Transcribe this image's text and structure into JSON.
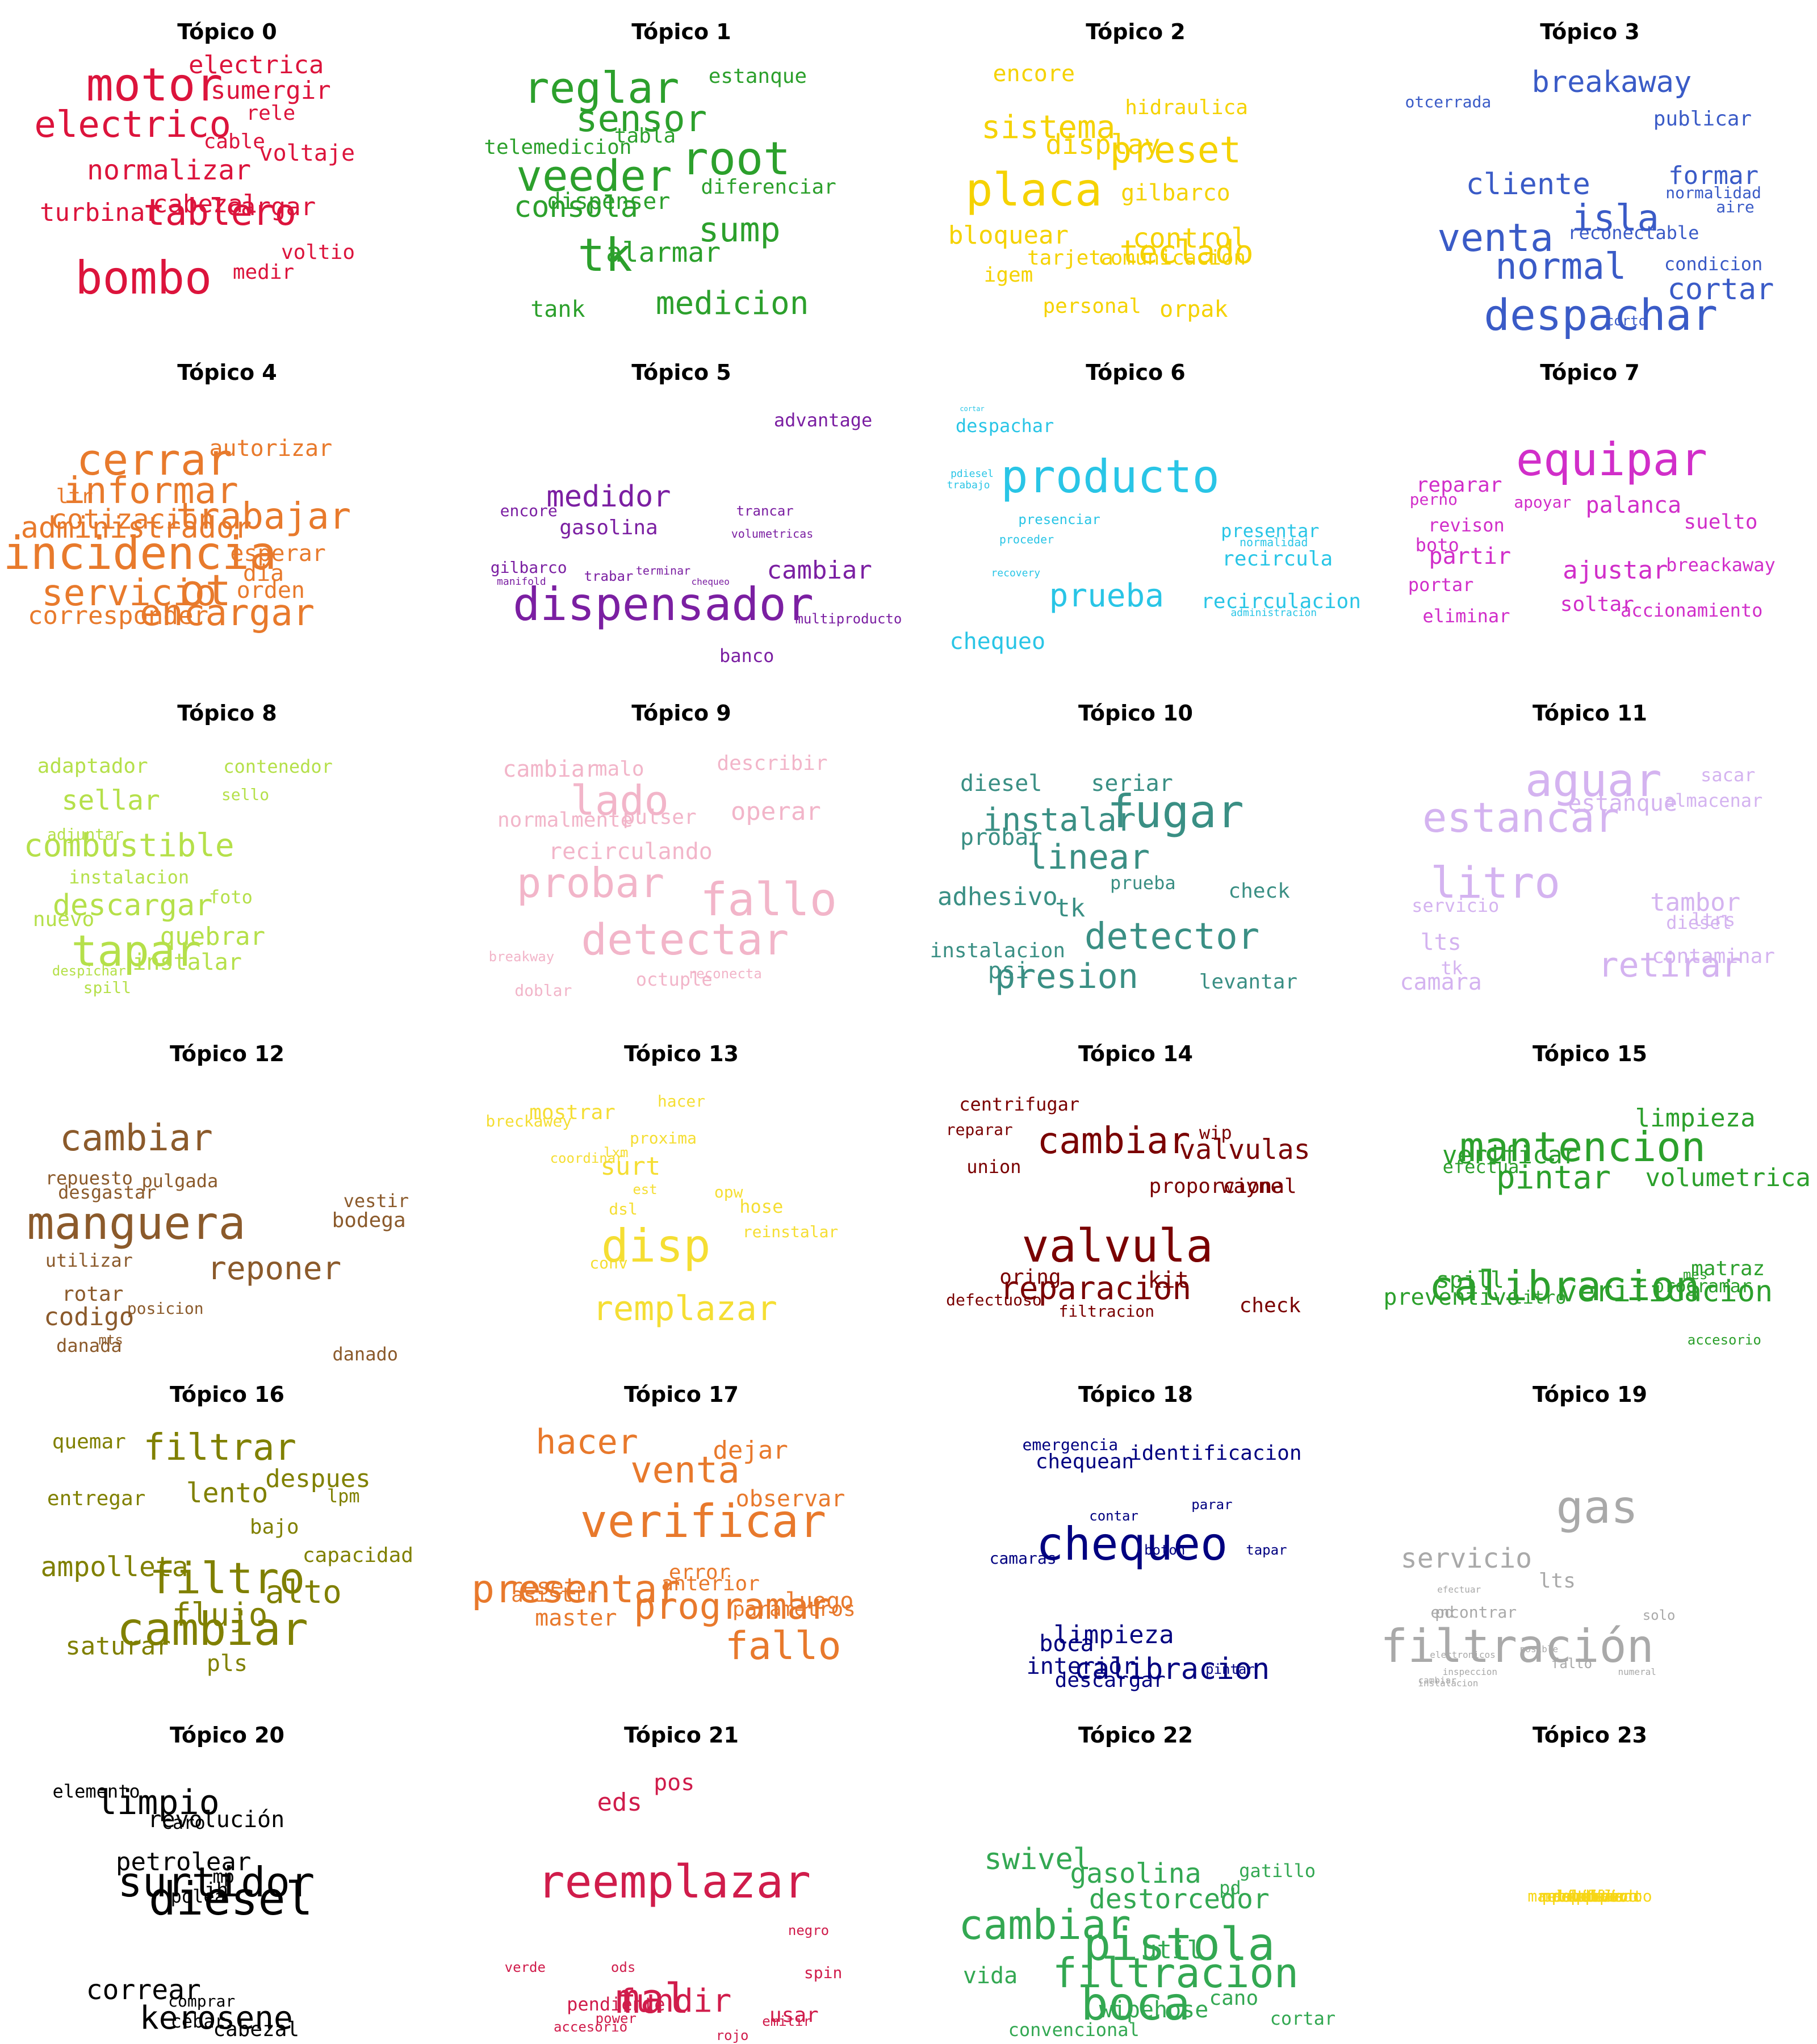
{
  "topics": [
    {
      "title": "Tópico 0",
      "color": "#dc143c",
      "words": [
        "motor",
        "electrico",
        "bombo",
        "tablero",
        "electrica",
        "sumergir",
        "rele",
        "cable",
        "voltaje",
        "normalizar",
        "turbinar",
        "cabezal",
        "cargar",
        "medir",
        "voltio"
      ]
    },
    {
      "title": "Tópico 1",
      "color": "#2ca02c",
      "words": [
        "reglar",
        "sensor",
        "veeder",
        "root",
        "tk",
        "consola",
        "sump",
        "medicion",
        "alarmar",
        "estanque",
        "telemedicion",
        "tabla",
        "dispenser",
        "diferenciar",
        "tank"
      ]
    },
    {
      "title": "Tópico 2",
      "color": "#f5d200",
      "words": [
        "placa",
        "sistema",
        "preset",
        "display",
        "teclado",
        "bloquear",
        "control",
        "gilbarco",
        "encore",
        "hidraulica",
        "tarjeta",
        "comunicacion",
        "igem",
        "personal",
        "orpak"
      ]
    },
    {
      "title": "Tópico 3",
      "color": "#3a5bc7",
      "words": [
        "despachar",
        "normal",
        "venta",
        "isla",
        "cliente",
        "breakaway",
        "cortar",
        "formar",
        "publicar",
        "otcerrada",
        "reconectable",
        "aire",
        "condicion",
        "normalidad",
        "corto"
      ]
    },
    {
      "title": "Tópico 4",
      "color": "#e87a2c",
      "words": [
        "incidencia",
        "cerrar",
        "informar",
        "trabajar",
        "servicio",
        "ot",
        "encargar",
        "administrador",
        "cotizacion",
        "corresponder",
        "autorizar",
        "ltr",
        "esperar",
        "dia",
        "orden"
      ]
    },
    {
      "title": "Tópico 5",
      "color": "#7b1fa2",
      "words": [
        "dispensador",
        "medidor",
        "cambiar",
        "gasolina",
        "advantage",
        "encore",
        "trancar",
        "volumetricas",
        "terminar",
        "gilbarco",
        "trabar",
        "manifold",
        "chequeo",
        "banco",
        "multiproducto"
      ]
    },
    {
      "title": "Tópico 6",
      "color": "#29c5e6",
      "words": [
        "producto",
        "prueba",
        "despachar",
        "recircula",
        "recirculacion",
        "chequeo",
        "presentar",
        "presenciar",
        "proceder",
        "normalidad",
        "pdiesel",
        "trabajo",
        "recovery",
        "administracion",
        "cortar"
      ]
    },
    {
      "title": "Tópico 7",
      "color": "#d12ec9",
      "words": [
        "equipar",
        "reparar",
        "palanca",
        "ajustar",
        "partir",
        "soltar",
        "perno",
        "apoyar",
        "revison",
        "suelto",
        "boto",
        "portar",
        "breackaway",
        "eliminar",
        "accionamiento"
      ]
    },
    {
      "title": "Tópico 8",
      "color": "#b5e04a",
      "words": [
        "tapar",
        "combustible",
        "descargar",
        "sellar",
        "quebrar",
        "instalar",
        "adaptador",
        "contenedor",
        "sello",
        "adjuntar",
        "instalacion",
        "foto",
        "nuevo",
        "despichar",
        "spill"
      ]
    },
    {
      "title": "Tópico 9",
      "color": "#f2b5c9",
      "words": [
        "fallo",
        "probar",
        "detectar",
        "lado",
        "operar",
        "recirculando",
        "cambiar",
        "malo",
        "describir",
        "pulser",
        "normalmente",
        "breakway",
        "doblar",
        "octuple",
        "reconecta"
      ]
    },
    {
      "title": "Tópico 10",
      "color": "#3a8f84",
      "words": [
        "fugar",
        "detector",
        "linear",
        "presion",
        "instalar",
        "adhesivo",
        "probar",
        "diesel",
        "seriar",
        "prueba",
        "tk",
        "check",
        "instalacion",
        "psi",
        "levantar"
      ]
    },
    {
      "title": "Tópico 11",
      "color": "#d4b3f0",
      "words": [
        "aguar",
        "litro",
        "estancar",
        "retirar",
        "tambor",
        "estanque",
        "almacenar",
        "sacar",
        "servicio",
        "diesel",
        "ltrs",
        "lts",
        "tk",
        "contaminar",
        "camara"
      ]
    },
    {
      "title": "Tópico 12",
      "color": "#8b5a2b",
      "words": [
        "cambiar",
        "manguera",
        "reponer",
        "repuesto",
        "desgastar",
        "pulgada",
        "vestir",
        "bodega",
        "utilizar",
        "rotar",
        "codigo",
        "posicion",
        "danada",
        "mts",
        "danado"
      ]
    },
    {
      "title": "Tópico 13",
      "color": "#f5de33",
      "words": [
        "disp",
        "remplazar",
        "surt",
        "mostrar",
        "breckawey",
        "hacer",
        "coordinar",
        "lxm",
        "proxima",
        "est",
        "dsl",
        "hose",
        "opw",
        "reinstalar",
        "conv"
      ]
    },
    {
      "title": "Tópico 14",
      "color": "#7a0000",
      "words": [
        "valvula",
        "cambiar",
        "reparacion",
        "proporcional",
        "valvulas",
        "oring",
        "kit",
        "check",
        "centrifugar",
        "wip",
        "wayne",
        "reparar",
        "union",
        "defectuoso",
        "filtracion"
      ]
    },
    {
      "title": "Tópico 15",
      "color": "#2ca02c",
      "words": [
        "mantencion",
        "calibracion",
        "preventivo",
        "limpieza",
        "verificacion",
        "volumetrica",
        "spill",
        "verificar",
        "matraz",
        "efectua",
        "mes",
        "accesorio",
        "pintar",
        "litro",
        "programar"
      ]
    },
    {
      "title": "Tópico 16",
      "color": "#808000",
      "words": [
        "cambiar",
        "filtro",
        "filtrar",
        "flujo",
        "alto",
        "ampolleta",
        "lento",
        "quemar",
        "entregar",
        "despues",
        "saturar",
        "capacidad",
        "bajo",
        "lpm",
        "pls"
      ]
    },
    {
      "title": "Tópico 17",
      "color": "#e8792c",
      "words": [
        "verificar",
        "venta",
        "presentar",
        "programar",
        "fallo",
        "hacer",
        "dejar",
        "observar",
        "error",
        "asistir",
        "anterior",
        "master",
        "parametros",
        "reset",
        "luego"
      ]
    },
    {
      "title": "Tópico 18",
      "color": "#000080",
      "words": [
        "chequeo",
        "calibracion",
        "limpieza",
        "boca",
        "interior",
        "chequean",
        "identificacion",
        "emergencia",
        "parar",
        "contar",
        "tapar",
        "camaras",
        "pintar",
        "boton",
        "descargar"
      ]
    },
    {
      "title": "Tópico 19",
      "color": "#a9a9a9",
      "words": [
        "gas",
        "filtración",
        "servicio",
        "lts",
        "encontrar",
        "pd",
        "solo",
        "efectuar",
        "electronicos",
        "posible",
        "falto",
        "cambiar",
        "inspeccion",
        "instalacion",
        "numeral"
      ]
    },
    {
      "title": "Tópico 20",
      "color": "#000000",
      "words": [
        "surtidor",
        "diesel",
        "kerosene",
        "correar",
        "limpio",
        "petrolear",
        "revolución",
        "caro",
        "elemento",
        "jh",
        "mp",
        "polea",
        "comprar",
        "cebar",
        "cabezal"
      ]
    },
    {
      "title": "Tópico 21",
      "color": "#d01c4b",
      "words": [
        "reemplazar",
        "mal",
        "fundir",
        "eds",
        "pos",
        "usar",
        "pendiente",
        "spin",
        "verde",
        "ods",
        "negro",
        "accesorio",
        "rojo",
        "power",
        "emitir"
      ]
    },
    {
      "title": "Tópico 22",
      "color": "#33a852",
      "words": [
        "boca",
        "pistola",
        "cambiar",
        "filtracion",
        "swivel",
        "gasolina",
        "destorcedor",
        "util",
        "vida",
        "wipehose",
        "gatillo",
        "pd",
        "cano",
        "convencional",
        "cortar"
      ]
    },
    {
      "title": "Tópico 23",
      "color": "#f7d615",
      "words": [
        "calibrar",
        "boca",
        "equipo",
        "preventivo",
        "mantencion",
        "devolver",
        "limpiar",
        "recirculado",
        "producto",
        "mantenimiento",
        "tk",
        "post",
        "tdf",
        "total",
        "eds"
      ]
    }
  ]
}
